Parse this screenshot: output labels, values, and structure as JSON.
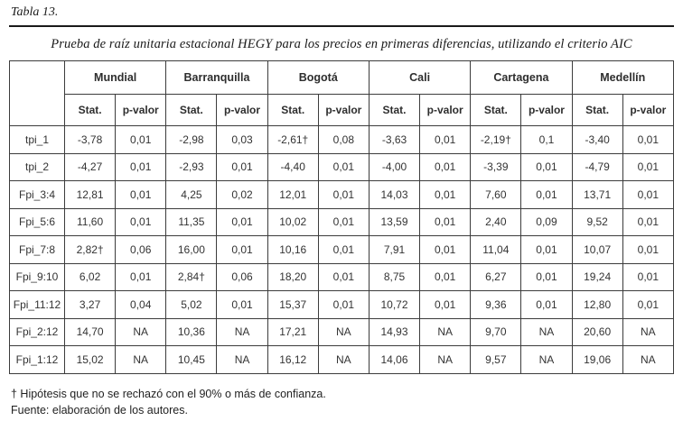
{
  "header": {
    "table_label": "Tabla 13.",
    "caption": "Prueba de raíz unitaria estacional HEGY para los precios en primeras diferencias, utilizando el criterio AIC"
  },
  "chart_data": {
    "type": "table",
    "column_groups": [
      "Mundial",
      "Barranquilla",
      "Bogotá",
      "Cali",
      "Cartagena",
      "Medellín"
    ],
    "sub_headers": [
      "Stat.",
      "p-valor"
    ],
    "rows": [
      {
        "label": "tpi_1",
        "values": [
          "-3,78",
          "0,01",
          "-2,98",
          "0,03",
          "-2,61†",
          "0,08",
          "-3,63",
          "0,01",
          "-2,19†",
          "0,1",
          "-3,40",
          "0,01"
        ]
      },
      {
        "label": "tpi_2",
        "values": [
          "-4,27",
          "0,01",
          "-2,93",
          "0,01",
          "-4,40",
          "0,01",
          "-4,00",
          "0,01",
          "-3,39",
          "0,01",
          "-4,79",
          "0,01"
        ]
      },
      {
        "label": "Fpi_3:4",
        "values": [
          "12,81",
          "0,01",
          "4,25",
          "0,02",
          "12,01",
          "0,01",
          "14,03",
          "0,01",
          "7,60",
          "0,01",
          "13,71",
          "0,01"
        ]
      },
      {
        "label": "Fpi_5:6",
        "values": [
          "11,60",
          "0,01",
          "11,35",
          "0,01",
          "10,02",
          "0,01",
          "13,59",
          "0,01",
          "2,40",
          "0,09",
          "9,52",
          "0,01"
        ]
      },
      {
        "label": "Fpi_7:8",
        "values": [
          "2,82†",
          "0,06",
          "16,00",
          "0,01",
          "10,16",
          "0,01",
          "7,91",
          "0,01",
          "11,04",
          "0,01",
          "10,07",
          "0,01"
        ]
      },
      {
        "label": "Fpi_9:10",
        "values": [
          "6,02",
          "0,01",
          "2,84†",
          "0,06",
          "18,20",
          "0,01",
          "8,75",
          "0,01",
          "6,27",
          "0,01",
          "19,24",
          "0,01"
        ]
      },
      {
        "label": "Fpi_11:12",
        "values": [
          "3,27",
          "0,04",
          "5,02",
          "0,01",
          "15,37",
          "0,01",
          "10,72",
          "0,01",
          "9,36",
          "0,01",
          "12,80",
          "0,01"
        ]
      },
      {
        "label": "Fpi_2:12",
        "values": [
          "14,70",
          "NA",
          "10,36",
          "NA",
          "17,21",
          "NA",
          "14,93",
          "NA",
          "9,70",
          "NA",
          "20,60",
          "NA"
        ]
      },
      {
        "label": "Fpi_1:12",
        "values": [
          "15,02",
          "NA",
          "10,45",
          "NA",
          "16,12",
          "NA",
          "14,06",
          "NA",
          "9,57",
          "NA",
          "19,06",
          "NA"
        ]
      }
    ]
  },
  "footnotes": {
    "dagger": "† Hipótesis que no se rechazó con el 90% o más de confianza.",
    "source": "Fuente: elaboración de los autores."
  },
  "colors": {
    "text": "#2b2b2b",
    "border": "#3c3c3c",
    "rule": "#1a1a1a",
    "background": "#ffffff"
  }
}
